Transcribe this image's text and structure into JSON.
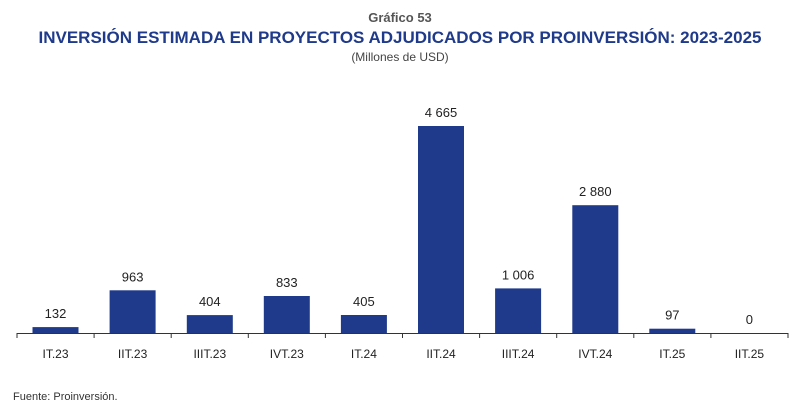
{
  "header": {
    "chart_number": "Gráfico 53",
    "title": "INVERSIÓN ESTIMADA EN PROYECTOS ADJUDICADOS POR PROINVERSIÓN: 2023-2025",
    "subtitle": "(Millones de USD)"
  },
  "source": "Fuente: Proinversión.",
  "chart_data": {
    "type": "bar",
    "title": "INVERSIÓN ESTIMADA EN PROYECTOS ADJUDICADOS POR PROINVERSIÓN: 2023-2025",
    "subtitle": "(Millones de USD)",
    "categories": [
      "IT.23",
      "IIT.23",
      "IIIT.23",
      "IVT.23",
      "IT.24",
      "IIT.24",
      "IIIT.24",
      "IVT.24",
      "IT.25",
      "IIT.25"
    ],
    "values": [
      132,
      963,
      404,
      833,
      405,
      4665,
      1006,
      2880,
      97,
      0
    ],
    "value_labels": [
      "132",
      "963",
      "404",
      "833",
      "405",
      "4 665",
      "1 006",
      "2 880",
      "97",
      "0"
    ],
    "ylim": [
      0,
      4665
    ],
    "grid": false,
    "legend": "none",
    "bar_color": "#1f3a8a"
  }
}
